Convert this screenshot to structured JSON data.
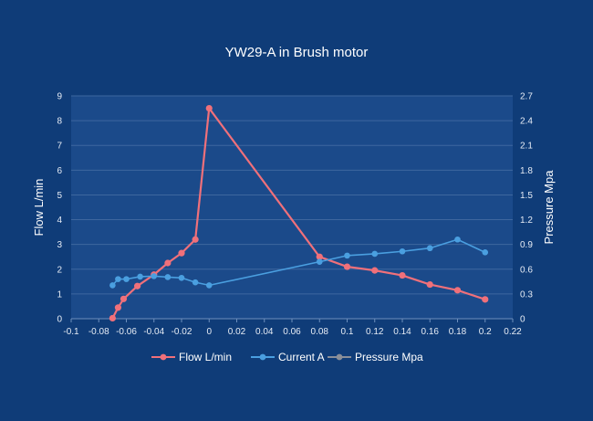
{
  "chart_data": {
    "type": "line",
    "title": "YW29-A in Brush motor",
    "ylabel": "Flow  L/min",
    "y2label": "Pressure  Mpa",
    "xlim": [
      -0.1,
      0.22
    ],
    "ylim": [
      0,
      9
    ],
    "y2lim": [
      0,
      2.7
    ],
    "x_ticks": [
      "-0.1",
      "-0.08",
      "-0.06",
      "-0.04",
      "-0.02",
      "0",
      "0.02",
      "0.04",
      "0.06",
      "0.08",
      "0.1",
      "0.12",
      "0.14",
      "0.16",
      "0.18",
      "0.2",
      "0.22"
    ],
    "y_ticks": [
      "0",
      "1",
      "2",
      "3",
      "4",
      "5",
      "6",
      "7",
      "8",
      "9"
    ],
    "y2_ticks": [
      "0",
      "0.3",
      "0.6",
      "0.9",
      "1.2",
      "1.5",
      "1.8",
      "2.1",
      "2.4",
      "2.7"
    ],
    "grid": true,
    "legend_position": "bottom",
    "series": [
      {
        "name": "Flow L/min",
        "color": "#f0707a",
        "points": [
          [
            -0.07,
            0.02
          ],
          [
            -0.066,
            0.45
          ],
          [
            -0.062,
            0.8
          ],
          [
            -0.052,
            1.32
          ],
          [
            -0.04,
            1.78
          ],
          [
            -0.03,
            2.25
          ],
          [
            -0.02,
            2.65
          ],
          [
            -0.01,
            3.2
          ],
          [
            0,
            8.5
          ],
          [
            0.08,
            2.5
          ],
          [
            0.1,
            2.1
          ],
          [
            0.12,
            1.95
          ],
          [
            0.14,
            1.75
          ],
          [
            0.16,
            1.38
          ],
          [
            0.18,
            1.15
          ],
          [
            0.2,
            0.78
          ]
        ]
      },
      {
        "name": "Current A",
        "color": "#4a9fe0",
        "points": [
          [
            -0.07,
            1.35
          ],
          [
            -0.066,
            1.6
          ],
          [
            -0.06,
            1.6
          ],
          [
            -0.05,
            1.7
          ],
          [
            -0.04,
            1.72
          ],
          [
            -0.03,
            1.68
          ],
          [
            -0.02,
            1.65
          ],
          [
            -0.01,
            1.47
          ],
          [
            0,
            1.35
          ],
          [
            0.08,
            2.3
          ],
          [
            0.1,
            2.55
          ],
          [
            0.12,
            2.62
          ],
          [
            0.14,
            2.72
          ],
          [
            0.16,
            2.85
          ],
          [
            0.18,
            3.2
          ],
          [
            0.2,
            2.68
          ]
        ]
      },
      {
        "name": "Pressure Mpa",
        "color": "#8a8f99",
        "points": []
      }
    ]
  }
}
